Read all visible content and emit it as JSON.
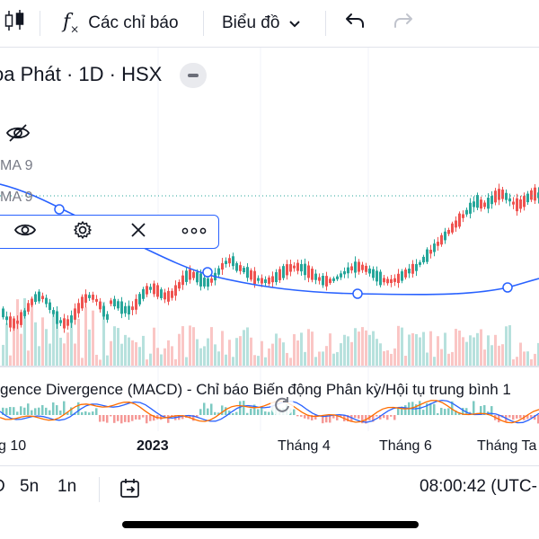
{
  "toolbar": {
    "indicators_label": "Các chỉ báo",
    "chart_type_label": "Biểu đồ"
  },
  "symbol": {
    "title": "oa Phát · 1D · HSX"
  },
  "indicators": {
    "ma_label_1": "MA 9",
    "ma_label_2": "MA 9",
    "macd_title": "gence Divergence (MACD) - Chỉ báo Biến động Phân kỳ/Hội tụ trung bình 1"
  },
  "time_axis": {
    "labels": [
      "g 10",
      "2023",
      "Tháng 4",
      "Tháng 6",
      "Tháng Ta"
    ]
  },
  "bottom_bar": {
    "interval_1": "D",
    "interval_2": "5n",
    "interval_3": "1n",
    "clock": "08:00:42 (UTC-"
  },
  "colors": {
    "up": "#26a69a",
    "down": "#ef5350",
    "accent": "#2962ff",
    "macd_line": "#2962ff",
    "signal_line": "#ff6d00"
  },
  "icons": [
    "candles-icon",
    "fx-icon",
    "chevron-down-icon",
    "undo-icon",
    "redo-icon",
    "eye-off-icon",
    "eye-icon",
    "gear-icon",
    "close-icon",
    "more-icon",
    "replay-icon",
    "date-range-icon"
  ]
}
